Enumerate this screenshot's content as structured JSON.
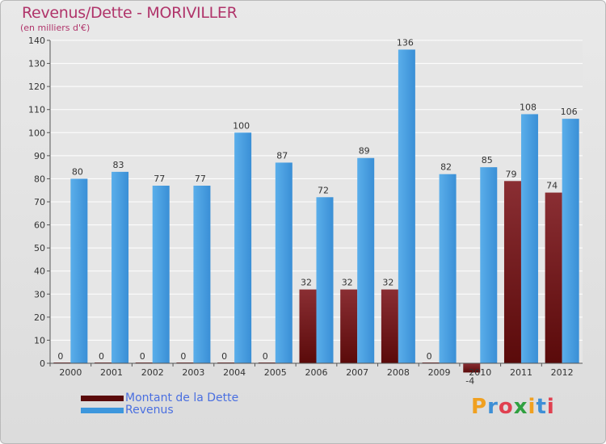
{
  "title": "Revenus/Dette - MORIVILLER",
  "subtitle": "(en milliers d'€)",
  "chart_data": {
    "type": "bar",
    "categories": [
      "2000",
      "2001",
      "2002",
      "2003",
      "2004",
      "2005",
      "2006",
      "2007",
      "2008",
      "2009",
      "2010",
      "2011",
      "2012"
    ],
    "series": [
      {
        "name": "Montant de la Dette",
        "color": "#7a1e1e",
        "values": [
          0,
          0,
          0,
          0,
          0,
          0,
          32,
          32,
          32,
          0,
          -4,
          79,
          74
        ]
      },
      {
        "name": "Revenus",
        "color": "#3d97dd",
        "values": [
          80,
          83,
          77,
          77,
          100,
          87,
          72,
          89,
          136,
          82,
          85,
          108,
          106
        ]
      }
    ],
    "ylim": [
      0,
      140
    ],
    "yticks": [
      0,
      10,
      20,
      30,
      40,
      50,
      60,
      70,
      80,
      90,
      100,
      110,
      120,
      130,
      140
    ],
    "grid": true,
    "legend": "bottom-left"
  },
  "legend": {
    "debt_label": "Montant de la Dette",
    "revenue_label": "Revenus"
  },
  "logo": {
    "letters": [
      "P",
      "r",
      "o",
      "x",
      "i",
      "t",
      "i"
    ]
  }
}
